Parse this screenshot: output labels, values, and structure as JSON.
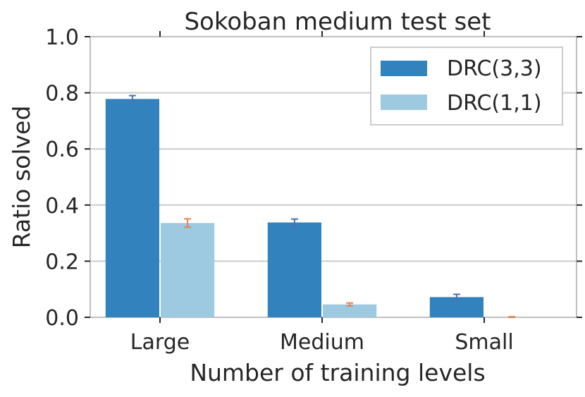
{
  "chart_data": {
    "type": "bar",
    "title": "Sokoban medium test set",
    "xlabel": "Number of training levels",
    "ylabel": "Ratio solved",
    "categories": [
      "Large",
      "Medium",
      "Small"
    ],
    "ylim": [
      0,
      1.0
    ],
    "yticks": [
      "0.0",
      "0.2",
      "0.4",
      "0.6",
      "0.8",
      "1.0"
    ],
    "grid": true,
    "legend_position": "top-right",
    "series": [
      {
        "name": "DRC(3,3)",
        "color": "#3182bd",
        "error_color": "#4c72b0",
        "values": [
          0.778,
          0.338,
          0.072
        ],
        "errors": [
          0.012,
          0.012,
          0.01
        ]
      },
      {
        "name": "DRC(1,1)",
        "color": "#9ecae1",
        "error_color": "#dd8452",
        "values": [
          0.336,
          0.046,
          0.0
        ],
        "errors": [
          0.015,
          0.005,
          0.002
        ]
      }
    ]
  }
}
